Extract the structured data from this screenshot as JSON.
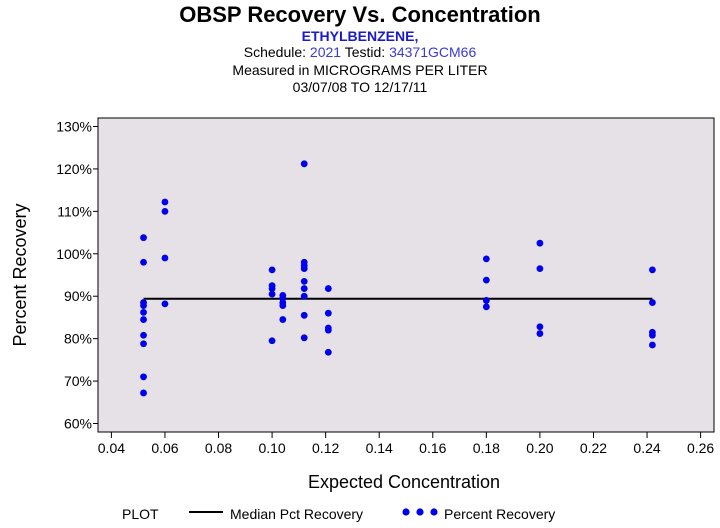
{
  "header": {
    "title": "OBSP Recovery Vs. Concentration",
    "analyte": "ETHYLBENZENE,",
    "schedule_label": "Schedule:",
    "schedule_value": "2021",
    "testid_label": "Testid:",
    "testid_value": "34371GCM66",
    "measured_line": "Measured in  MICROGRAMS PER LITER",
    "date_range": "03/07/08 TO 12/17/11"
  },
  "colors": {
    "plot_background": "#e6e1e6",
    "points": "#0000ee",
    "median_line": "#000000"
  },
  "chart_data": {
    "type": "scatter",
    "title": "OBSP Recovery Vs. Concentration",
    "xlabel": "Expected Concentration",
    "ylabel": "Percent Recovery",
    "xlim": [
      0.035,
      0.265
    ],
    "ylim": [
      58,
      132
    ],
    "x_ticks": [
      0.04,
      0.06,
      0.08,
      0.1,
      0.12,
      0.14,
      0.16,
      0.18,
      0.2,
      0.22,
      0.24,
      0.26
    ],
    "x_tick_labels": [
      "0.04",
      "0.06",
      "0.08",
      "0.10",
      "0.12",
      "0.14",
      "0.16",
      "0.18",
      "0.20",
      "0.22",
      "0.24",
      "0.26"
    ],
    "y_ticks": [
      60,
      70,
      80,
      90,
      100,
      110,
      120,
      130
    ],
    "y_tick_labels": [
      "60%",
      "70%",
      "80%",
      "90%",
      "100%",
      "110%",
      "120%",
      "130%"
    ],
    "series": [
      {
        "name": "Percent Recovery",
        "kind": "points",
        "points": [
          [
            0.052,
            103.8
          ],
          [
            0.052,
            98.0
          ],
          [
            0.052,
            88.5
          ],
          [
            0.052,
            87.8
          ],
          [
            0.052,
            86.2
          ],
          [
            0.052,
            84.5
          ],
          [
            0.052,
            80.8
          ],
          [
            0.052,
            78.8
          ],
          [
            0.052,
            71.0
          ],
          [
            0.052,
            67.2
          ],
          [
            0.06,
            112.2
          ],
          [
            0.06,
            110.0
          ],
          [
            0.06,
            99.0
          ],
          [
            0.06,
            88.2
          ],
          [
            0.1,
            96.2
          ],
          [
            0.1,
            92.5
          ],
          [
            0.1,
            91.8
          ],
          [
            0.1,
            90.5
          ],
          [
            0.1,
            79.5
          ],
          [
            0.104,
            90.2
          ],
          [
            0.104,
            89.5
          ],
          [
            0.104,
            88.5
          ],
          [
            0.104,
            87.8
          ],
          [
            0.104,
            84.5
          ],
          [
            0.112,
            121.2
          ],
          [
            0.112,
            98.0
          ],
          [
            0.112,
            97.2
          ],
          [
            0.112,
            96.5
          ],
          [
            0.112,
            93.5
          ],
          [
            0.112,
            91.8
          ],
          [
            0.112,
            90.0
          ],
          [
            0.112,
            85.5
          ],
          [
            0.112,
            80.2
          ],
          [
            0.121,
            91.8
          ],
          [
            0.121,
            86.0
          ],
          [
            0.121,
            82.5
          ],
          [
            0.121,
            82.0
          ],
          [
            0.121,
            76.8
          ],
          [
            0.18,
            98.8
          ],
          [
            0.18,
            93.8
          ],
          [
            0.18,
            89.0
          ],
          [
            0.18,
            87.5
          ],
          [
            0.2,
            102.5
          ],
          [
            0.2,
            96.5
          ],
          [
            0.2,
            82.8
          ],
          [
            0.2,
            81.2
          ],
          [
            0.242,
            96.2
          ],
          [
            0.242,
            88.5
          ],
          [
            0.242,
            81.5
          ],
          [
            0.242,
            80.8
          ],
          [
            0.242,
            78.5
          ]
        ]
      },
      {
        "name": "Median Pct Recovery",
        "kind": "line",
        "x": [
          0.052,
          0.242
        ],
        "values": [
          89.4,
          89.4
        ]
      }
    ],
    "legend": {
      "placement": "bottom",
      "title": "PLOT",
      "entries": [
        "Median Pct Recovery",
        "Percent Recovery"
      ]
    }
  }
}
